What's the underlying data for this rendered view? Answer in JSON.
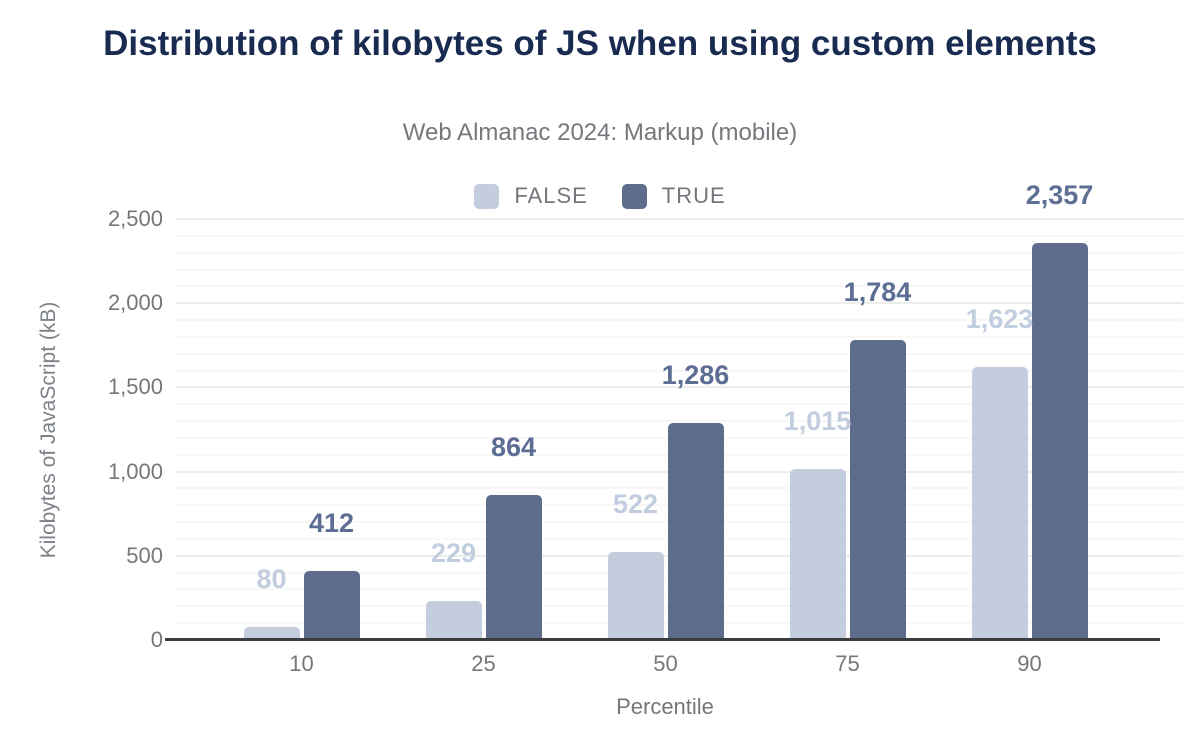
{
  "chart": {
    "title": "Distribution of kilobytes of JS when using custom elements",
    "subtitle": "Web Almanac 2024: Markup (mobile)"
  },
  "chart_data": {
    "type": "bar",
    "title": "Distribution of kilobytes of JS when using custom elements",
    "subtitle": "Web Almanac 2024: Markup (mobile)",
    "categories": [
      "10",
      "25",
      "50",
      "75",
      "90"
    ],
    "xlabel": "Percentile",
    "ylabel": "Kilobytes of JavaScript (kB)",
    "ylim": [
      0,
      2500
    ],
    "yticks": [
      "0",
      "500",
      "1,000",
      "1,500",
      "2,000",
      "2,500"
    ],
    "ytick_step_major": 500,
    "ytick_step_minor": 100,
    "grid": true,
    "legend_position": "top",
    "series": [
      {
        "name": "FALSE",
        "color": "#c4cdde",
        "label_color": "#c2cde0",
        "values": [
          80,
          229,
          522,
          1015,
          1623
        ],
        "labels": [
          "80",
          "229",
          "522",
          "1,015",
          "1,623"
        ]
      },
      {
        "name": "TRUE",
        "color": "#5e6d8c",
        "label_color": "#5d6e94",
        "values": [
          412,
          864,
          1286,
          1784,
          2357
        ],
        "labels": [
          "412",
          "864",
          "1,286",
          "1,784",
          "2,357"
        ]
      }
    ],
    "colors": {
      "title": "#1a2b52",
      "axis_text": "#74777b",
      "axis_line": "#3b3c3e",
      "grid_minor": "#f7f7f6",
      "grid_major": "#ededec"
    }
  }
}
